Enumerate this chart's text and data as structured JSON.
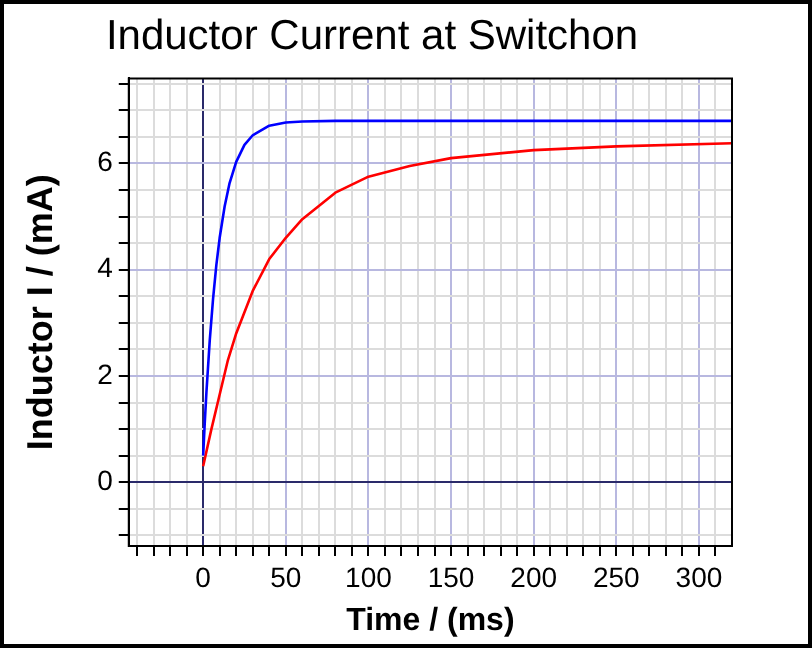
{
  "chart_data": {
    "type": "line",
    "title": "Inductor Current at Switchon",
    "xlabel": "Time / (ms)",
    "ylabel": "Inductor I / (mA)",
    "series": [
      {
        "color": "#0000ff",
        "x": [
          0,
          1,
          2,
          4,
          6,
          8,
          10,
          13,
          16,
          20,
          25,
          30,
          40,
          50,
          60,
          80,
          100,
          150,
          200,
          250,
          320
        ],
        "values": [
          0.5,
          1.13,
          1.7,
          2.67,
          3.45,
          4.09,
          4.6,
          5.19,
          5.63,
          6.03,
          6.35,
          6.53,
          6.71,
          6.77,
          6.79,
          6.8,
          6.8,
          6.8,
          6.8,
          6.8,
          6.8
        ]
      },
      {
        "color": "#ff0000",
        "x": [
          0,
          5,
          10,
          15,
          20,
          30,
          40,
          50,
          60,
          80,
          100,
          125,
          150,
          200,
          250,
          320
        ],
        "values": [
          0.3,
          1.0,
          1.65,
          2.3,
          2.8,
          3.6,
          4.2,
          4.6,
          4.95,
          5.45,
          5.75,
          5.95,
          6.1,
          6.25,
          6.32,
          6.38
        ]
      }
    ],
    "xlim": [
      -45,
      320
    ],
    "ylim": [
      -1.2,
      7.6
    ],
    "xticks": [
      {
        "value": -40,
        "label": null
      },
      {
        "value": -30,
        "label": null
      },
      {
        "value": -20,
        "label": null
      },
      {
        "value": -10,
        "label": null
      },
      0,
      {
        "value": 10,
        "label": null
      },
      {
        "value": 20,
        "label": null
      },
      {
        "value": 30,
        "label": null
      },
      {
        "value": 40,
        "label": null
      },
      50,
      {
        "value": 60,
        "label": null
      },
      {
        "value": 70,
        "label": null
      },
      {
        "value": 80,
        "label": null
      },
      {
        "value": 90,
        "label": null
      },
      100,
      {
        "value": 110,
        "label": null
      },
      {
        "value": 120,
        "label": null
      },
      {
        "value": 130,
        "label": null
      },
      {
        "value": 140,
        "label": null
      },
      150,
      {
        "value": 160,
        "label": null
      },
      {
        "value": 170,
        "label": null
      },
      {
        "value": 180,
        "label": null
      },
      {
        "value": 190,
        "label": null
      },
      200,
      {
        "value": 210,
        "label": null
      },
      {
        "value": 220,
        "label": null
      },
      {
        "value": 230,
        "label": null
      },
      {
        "value": 240,
        "label": null
      },
      250,
      {
        "value": 260,
        "label": null
      },
      {
        "value": 270,
        "label": null
      },
      {
        "value": 280,
        "label": null
      },
      {
        "value": 290,
        "label": null
      },
      300,
      {
        "value": 310,
        "label": null
      }
    ],
    "yticks": [
      {
        "value": -1,
        "label": null
      },
      {
        "value": -0.5,
        "label": null
      },
      0,
      {
        "value": 0.5,
        "label": null
      },
      {
        "value": 1,
        "label": null
      },
      {
        "value": 1.5,
        "label": null
      },
      2,
      {
        "value": 2.5,
        "label": null
      },
      {
        "value": 3,
        "label": null
      },
      {
        "value": 3.5,
        "label": null
      },
      4,
      {
        "value": 4.5,
        "label": null
      },
      {
        "value": 5,
        "label": null
      },
      {
        "value": 5.5,
        "label": null
      },
      6,
      {
        "value": 6.5,
        "label": null
      },
      {
        "value": 7,
        "label": null
      },
      {
        "value": 7.5,
        "label": null
      }
    ],
    "grid": true,
    "marker": "none",
    "line_style": "solid"
  }
}
